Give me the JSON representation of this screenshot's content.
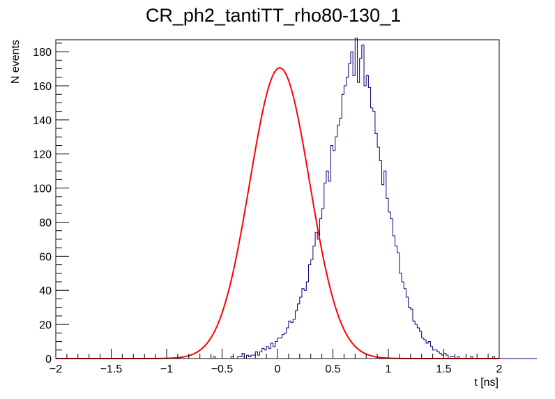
{
  "chart_data": {
    "type": "histogram",
    "title": "CR_ph2_tantiTT_rho80-130_1",
    "xlabel": "t [ns]",
    "ylabel": "N events",
    "xlim": [
      -2,
      2
    ],
    "ylim": [
      0,
      187
    ],
    "x_major_ticks": [
      -2,
      -1.5,
      -1,
      -0.5,
      0,
      0.5,
      1,
      1.5,
      2
    ],
    "x_tick_labels": [
      "−2",
      "−1.5",
      "−1",
      "−0.5",
      "0",
      "0.5",
      "1",
      "1.5",
      "2"
    ],
    "y_major_ticks": [
      0,
      20,
      40,
      60,
      80,
      100,
      120,
      140,
      160,
      180
    ],
    "y_tick_labels": [
      "0",
      "20",
      "40",
      "60",
      "80",
      "100",
      "120",
      "140",
      "160",
      "180"
    ],
    "grid": false,
    "series": [
      {
        "name": "histogram",
        "kind": "step",
        "color": "#000080",
        "bin_width": 0.02,
        "x_start": -2.0,
        "values": [
          0,
          0,
          0,
          0,
          0,
          0,
          0,
          0,
          0,
          0,
          0,
          0,
          0,
          0,
          0,
          0,
          0,
          0,
          0,
          0,
          0,
          0,
          0,
          0,
          0,
          0,
          0,
          0,
          0,
          0,
          0,
          0,
          0,
          0,
          0,
          0,
          0,
          0,
          0,
          0,
          0,
          0,
          0,
          0,
          0,
          0,
          0,
          0,
          0,
          0,
          0,
          0,
          0,
          0,
          0,
          0,
          0,
          0,
          0,
          0,
          0,
          0,
          0,
          0,
          0,
          0,
          0,
          0,
          0,
          0,
          0,
          1,
          0,
          0,
          0,
          0,
          0,
          0,
          0,
          1,
          0,
          0,
          1,
          1,
          3,
          0,
          2,
          1,
          2,
          2,
          4,
          2,
          4,
          6,
          5,
          7,
          6,
          9,
          7,
          10,
          12,
          12,
          14,
          15,
          18,
          22,
          21,
          23,
          28,
          32,
          36,
          41,
          40,
          45,
          55,
          58,
          66,
          74,
          70,
          82,
          88,
          103,
          110,
          104,
          125,
          122,
          130,
          137,
          141,
          155,
          160,
          165,
          173,
          180,
          166,
          188,
          162,
          176,
          184,
          160,
          166,
          159,
          147,
          145,
          132,
          124,
          116,
          102,
          110,
          94,
          86,
          82,
          72,
          66,
          62,
          50,
          45,
          41,
          36,
          30,
          29,
          22,
          20,
          18,
          16,
          12,
          11,
          9,
          10,
          7,
          5,
          5,
          4,
          3,
          2,
          3,
          2,
          0,
          1,
          1,
          0,
          1,
          0,
          0,
          0,
          0,
          0,
          1,
          0,
          0,
          0,
          0,
          0,
          0,
          0,
          0,
          0,
          1,
          0,
          0,
          0,
          0,
          0,
          0,
          0,
          0,
          0,
          0,
          0,
          0,
          0,
          0,
          0,
          0,
          0,
          0,
          0
        ]
      },
      {
        "name": "gaussian-fit",
        "kind": "curve",
        "color": "#ff0000",
        "function": "gaussian",
        "amplitude": 170.5,
        "mean": 0.02,
        "sigma": 0.27,
        "x_range": [
          -2,
          2
        ]
      }
    ]
  }
}
